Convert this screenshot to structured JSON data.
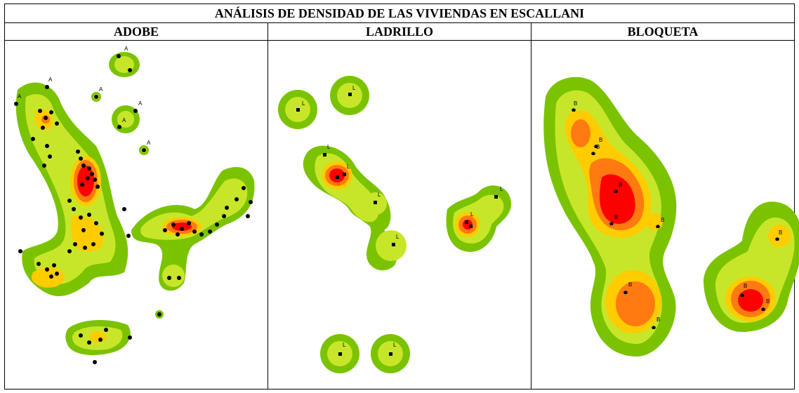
{
  "title": "ANÁLISIS DE DENSIDAD DE LAS VIVIENDAS EN ESCALLANI",
  "colors": {
    "level1": "#7bc301",
    "level2": "#c8e629",
    "level3": "#ffcc00",
    "level4": "#ff7a10",
    "level5": "#ff0000"
  },
  "panels": [
    {
      "name": "ADOBE",
      "marker": "A",
      "marker_shape": "circle",
      "clusters": [
        {
          "label": "north-isolated",
          "shape": "ellipse",
          "levels": 2
        },
        {
          "label": "west-arm",
          "shape": "blob",
          "levels": 5
        },
        {
          "label": "east-arm",
          "shape": "blob",
          "levels": 5
        },
        {
          "label": "south-west",
          "shape": "blob",
          "levels": 3
        },
        {
          "label": "south-isolated",
          "shape": "ellipse",
          "levels": 3
        }
      ]
    },
    {
      "name": "LADRILLO",
      "marker": "L",
      "marker_shape": "square",
      "clusters": [
        {
          "label": "north-pair",
          "shape": "circle",
          "levels": 2
        },
        {
          "label": "central-chain",
          "shape": "blob",
          "levels": 5
        },
        {
          "label": "east-pair",
          "shape": "blob",
          "levels": 5
        },
        {
          "label": "south-pair",
          "shape": "circle",
          "levels": 2
        }
      ]
    },
    {
      "name": "BLOQUETA",
      "marker": "B",
      "marker_shape": "pentagon",
      "clusters": [
        {
          "label": "main-north-south",
          "shape": "blob",
          "levels": 5
        },
        {
          "label": "east-isolated",
          "shape": "blob",
          "levels": 5
        }
      ]
    }
  ]
}
